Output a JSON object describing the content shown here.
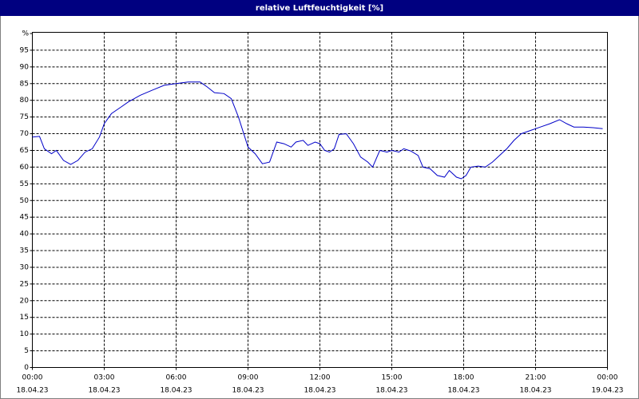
{
  "chart_data": {
    "type": "line",
    "title": "relative Luftfeuchtigkeit [%]",
    "x": [
      0,
      0.3,
      0.5,
      0.8,
      1.0,
      1.3,
      1.6,
      1.9,
      2.2,
      2.5,
      2.8,
      3.0,
      3.3,
      3.7,
      4.0,
      4.5,
      5.0,
      5.5,
      6.0,
      6.5,
      7.0,
      7.3,
      7.6,
      8.0,
      8.3,
      8.6,
      9.0,
      9.3,
      9.6,
      9.9,
      10.2,
      10.5,
      10.8,
      11.0,
      11.3,
      11.5,
      11.8,
      12.0,
      12.2,
      12.4,
      12.6,
      12.8,
      13.1,
      13.4,
      13.7,
      14.0,
      14.2,
      14.5,
      14.8,
      15.0,
      15.3,
      15.5,
      15.8,
      16.1,
      16.3,
      16.6,
      16.9,
      17.2,
      17.4,
      17.7,
      17.9,
      18.1,
      18.3,
      18.6,
      18.9,
      19.2,
      19.5,
      19.8,
      20.1,
      20.4,
      20.8,
      21.2,
      21.6,
      22.0,
      22.3,
      22.6,
      23.0,
      23.4,
      23.8
    ],
    "series": [
      {
        "name": "relative Luftfeuchtigkeit",
        "color": "#0000c8",
        "values": [
          69,
          69.2,
          65.5,
          64,
          65,
          62,
          60.8,
          62,
          64.5,
          65.5,
          69,
          73,
          76,
          78,
          79.5,
          81.5,
          83,
          84.5,
          85,
          85.5,
          85.5,
          84,
          82.3,
          82,
          80.5,
          75,
          66,
          64,
          61,
          61.5,
          67.5,
          67,
          66,
          67.5,
          68,
          66.5,
          67.5,
          67,
          65,
          64.5,
          65.5,
          69.8,
          70,
          67,
          63,
          61.5,
          60,
          65,
          64.5,
          65,
          64.5,
          65.5,
          64.8,
          63.5,
          60,
          59.5,
          57.5,
          57,
          59,
          57,
          56.5,
          57.5,
          60,
          60.3,
          60,
          61.5,
          63.5,
          65.5,
          68,
          70,
          71,
          72,
          73,
          74.2,
          73,
          72,
          72,
          71.8,
          71.5
        ]
      }
    ],
    "xlim": [
      0,
      24
    ],
    "xticks": [
      {
        "value": 0,
        "label": "00:00"
      },
      {
        "value": 3,
        "label": "03:00"
      },
      {
        "value": 6,
        "label": "06:00"
      },
      {
        "value": 9,
        "label": "09:00"
      },
      {
        "value": 12,
        "label": "12:00"
      },
      {
        "value": 15,
        "label": "15:00"
      },
      {
        "value": 18,
        "label": "18:00"
      },
      {
        "value": 21,
        "label": "21:00"
      },
      {
        "value": 24,
        "label": "00:00"
      }
    ],
    "xtick_dates": [
      "18.04.23",
      "18.04.23",
      "18.04.23",
      "18.04.23",
      "18.04.23",
      "18.04.23",
      "18.04.23",
      "18.04.23",
      "19.04.23"
    ],
    "ylim": [
      0,
      100
    ],
    "yticks": [
      0,
      5,
      10,
      15,
      20,
      25,
      30,
      35,
      40,
      45,
      50,
      55,
      60,
      65,
      70,
      75,
      80,
      85,
      90,
      95,
      {
        "value": 100,
        "label": "%"
      }
    ],
    "grid": true
  }
}
